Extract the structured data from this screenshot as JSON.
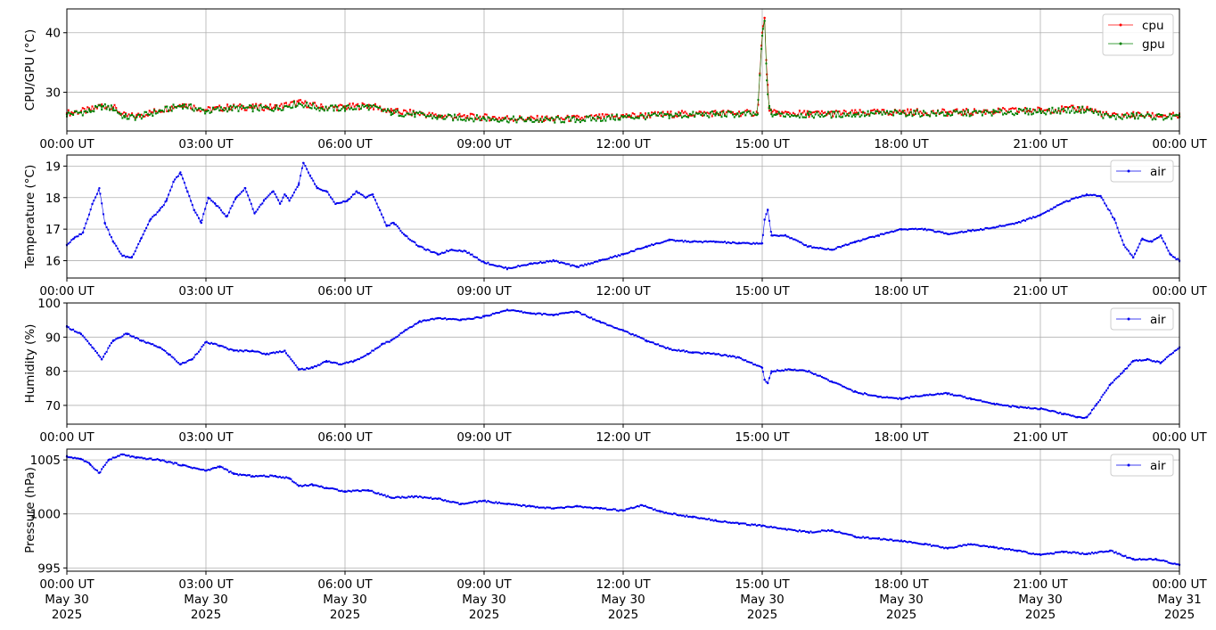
{
  "chart_data": [
    {
      "type": "line",
      "ylabel": "CPU/GPU (°C)",
      "xlim": [
        "00:00",
        "24:00"
      ],
      "ylim": [
        23.5,
        44
      ],
      "yticks": [
        30,
        40
      ],
      "xtick_labels": [
        "00:00 UT",
        "03:00 UT",
        "06:00 UT",
        "09:00 UT",
        "12:00 UT",
        "15:00 UT",
        "18:00 UT",
        "21:00 UT",
        "00:00 UT"
      ],
      "grid": true,
      "legend_position": "top-right",
      "series": [
        {
          "name": "cpu",
          "color": "#ff0000",
          "x_hours": [
            0,
            0.5,
            0.75,
            1.0,
            1.25,
            1.5,
            2.0,
            2.5,
            3.0,
            3.5,
            4.0,
            4.5,
            5.0,
            5.5,
            6.0,
            6.5,
            7.0,
            7.5,
            8.0,
            9.0,
            10.0,
            11.0,
            12.0,
            13.0,
            14.0,
            14.9,
            15.0,
            15.05,
            15.1,
            15.15,
            15.2,
            15.3,
            16.0,
            17.0,
            18.0,
            19.0,
            20.0,
            21.0,
            22.0,
            22.5,
            23.0,
            24.0
          ],
          "y": [
            26.5,
            27.0,
            27.8,
            27.5,
            26.0,
            26.0,
            27.0,
            28.0,
            27.0,
            27.5,
            27.5,
            27.5,
            28.3,
            27.5,
            27.5,
            27.8,
            26.8,
            26.5,
            26.0,
            25.8,
            25.5,
            25.6,
            26.0,
            26.3,
            26.5,
            26.5,
            40.0,
            42.5,
            33.0,
            27.5,
            26.5,
            26.5,
            26.4,
            26.5,
            26.7,
            26.6,
            26.8,
            27.0,
            27.3,
            26.0,
            26.2,
            26.0
          ]
        },
        {
          "name": "gpu",
          "color": "#008000",
          "x_hours": [
            0,
            0.5,
            0.75,
            1.0,
            1.25,
            1.5,
            2.0,
            2.5,
            3.0,
            3.5,
            4.0,
            4.5,
            5.0,
            5.5,
            6.0,
            6.5,
            7.0,
            7.5,
            8.0,
            9.0,
            10.0,
            11.0,
            12.0,
            13.0,
            14.0,
            14.9,
            15.0,
            15.05,
            15.1,
            15.15,
            15.2,
            15.3,
            16.0,
            17.0,
            18.0,
            19.0,
            20.0,
            21.0,
            22.0,
            22.5,
            23.0,
            24.0
          ],
          "y": [
            26.3,
            26.8,
            27.6,
            27.3,
            25.8,
            25.8,
            26.8,
            27.8,
            26.8,
            27.3,
            27.3,
            27.3,
            28.1,
            27.3,
            27.3,
            27.6,
            26.6,
            26.3,
            25.8,
            25.6,
            25.3,
            25.4,
            25.8,
            26.1,
            26.3,
            26.3,
            39.5,
            42.0,
            32.0,
            27.3,
            26.3,
            26.3,
            26.2,
            26.3,
            26.5,
            26.4,
            26.6,
            26.8,
            27.1,
            25.8,
            26.0,
            25.8
          ]
        }
      ]
    },
    {
      "type": "line",
      "ylabel": "Temperature (°C)",
      "xlim": [
        "00:00",
        "24:00"
      ],
      "ylim": [
        15.45,
        19.35
      ],
      "yticks": [
        16,
        17,
        18,
        19
      ],
      "xtick_labels": [
        "00:00 UT",
        "03:00 UT",
        "06:00 UT",
        "09:00 UT",
        "12:00 UT",
        "15:00 UT",
        "18:00 UT",
        "21:00 UT",
        "00:00 UT"
      ],
      "grid": true,
      "legend_position": "top-right",
      "series": [
        {
          "name": "air",
          "color": "#0000ee",
          "x_hours": [
            0,
            0.15,
            0.35,
            0.55,
            0.7,
            0.82,
            1.0,
            1.2,
            1.4,
            1.6,
            1.8,
            2.0,
            2.15,
            2.3,
            2.45,
            2.6,
            2.75,
            2.9,
            3.05,
            3.2,
            3.45,
            3.65,
            3.85,
            4.05,
            4.25,
            4.45,
            4.6,
            4.7,
            4.8,
            5.0,
            5.1,
            5.25,
            5.4,
            5.6,
            5.8,
            6.05,
            6.25,
            6.45,
            6.6,
            6.75,
            6.9,
            7.05,
            7.3,
            7.6,
            8.0,
            8.3,
            8.6,
            9.0,
            9.5,
            10.0,
            10.5,
            11.0,
            11.5,
            12.0,
            12.5,
            13.0,
            13.5,
            14.0,
            14.5,
            15.0,
            15.05,
            15.12,
            15.2,
            15.5,
            16.0,
            16.5,
            17.0,
            17.5,
            18.0,
            18.5,
            19.0,
            19.5,
            20.0,
            20.5,
            21.0,
            21.5,
            22.0,
            22.3,
            22.6,
            22.8,
            23.0,
            23.2,
            23.4,
            23.6,
            23.8,
            24.0
          ],
          "y": [
            16.5,
            16.7,
            16.9,
            17.8,
            18.3,
            17.2,
            16.6,
            16.15,
            16.1,
            16.7,
            17.3,
            17.6,
            17.9,
            18.5,
            18.8,
            18.2,
            17.6,
            17.2,
            18.0,
            17.8,
            17.4,
            18.0,
            18.3,
            17.5,
            17.9,
            18.2,
            17.8,
            18.1,
            17.9,
            18.4,
            19.1,
            18.7,
            18.3,
            18.2,
            17.8,
            17.9,
            18.2,
            18.0,
            18.1,
            17.6,
            17.1,
            17.2,
            16.8,
            16.45,
            16.2,
            16.35,
            16.3,
            15.95,
            15.75,
            15.9,
            16.0,
            15.8,
            16.0,
            16.2,
            16.45,
            16.65,
            16.6,
            16.6,
            16.55,
            16.55,
            17.3,
            17.6,
            16.8,
            16.8,
            16.45,
            16.35,
            16.6,
            16.8,
            17.0,
            17.0,
            16.85,
            16.95,
            17.05,
            17.2,
            17.45,
            17.85,
            18.1,
            18.05,
            17.3,
            16.5,
            16.1,
            16.7,
            16.6,
            16.8,
            16.2,
            16.0
          ]
        }
      ]
    },
    {
      "type": "line",
      "ylabel": "Humidity (%)",
      "xlim": [
        "00:00",
        "24:00"
      ],
      "ylim": [
        64.5,
        100
      ],
      "yticks": [
        70,
        80,
        90,
        100
      ],
      "xtick_labels": [
        "00:00 UT",
        "03:00 UT",
        "06:00 UT",
        "09:00 UT",
        "12:00 UT",
        "15:00 UT",
        "18:00 UT",
        "21:00 UT",
        "00:00 UT"
      ],
      "grid": true,
      "legend_position": "top-right",
      "series": [
        {
          "name": "air",
          "color": "#0000ee",
          "x_hours": [
            0,
            0.3,
            0.55,
            0.75,
            1.0,
            1.3,
            1.6,
            2.0,
            2.2,
            2.45,
            2.7,
            3.0,
            3.3,
            3.6,
            4.0,
            4.3,
            4.7,
            5.0,
            5.3,
            5.6,
            5.9,
            6.2,
            6.5,
            6.8,
            7.0,
            7.3,
            7.6,
            8.0,
            8.5,
            9.0,
            9.5,
            10.0,
            10.5,
            11.0,
            11.5,
            12.0,
            12.5,
            13.0,
            13.5,
            14.0,
            14.5,
            15.0,
            15.05,
            15.12,
            15.2,
            15.6,
            16.0,
            16.5,
            17.0,
            17.5,
            18.0,
            18.5,
            19.0,
            19.5,
            20.0,
            20.5,
            21.0,
            21.5,
            21.8,
            22.0,
            22.2,
            22.5,
            22.8,
            23.0,
            23.3,
            23.6,
            24.0
          ],
          "y": [
            93,
            91,
            87,
            83.5,
            89,
            91,
            89,
            87,
            85,
            82,
            83.5,
            88.5,
            87.5,
            86,
            86,
            85,
            86,
            80.5,
            81,
            83,
            82,
            83,
            85,
            88,
            89,
            92,
            94.5,
            95.5,
            95,
            96,
            98,
            97,
            96.5,
            97.5,
            94.5,
            92,
            89,
            86.5,
            85.5,
            85,
            84,
            81,
            77.5,
            76.5,
            80,
            80.5,
            80,
            77,
            74,
            72.5,
            72,
            73,
            73.5,
            72,
            70.5,
            69.5,
            69,
            67.5,
            66.5,
            66.5,
            70,
            76,
            80,
            83,
            83.5,
            82.5,
            87
          ]
        }
      ]
    },
    {
      "type": "line",
      "ylabel": "Pressure (hPa)",
      "xlim": [
        "00:00",
        "24:00"
      ],
      "ylim": [
        994.7,
        1006
      ],
      "yticks": [
        995,
        1000,
        1005
      ],
      "xtick_labels": [
        "00:00 UT\nMay 30\n2025",
        "03:00 UT\nMay 30\n2025",
        "06:00 UT\nMay 30\n2025",
        "09:00 UT\nMay 30\n2025",
        "12:00 UT\nMay 30\n2025",
        "15:00 UT\nMay 30\n2025",
        "18:00 UT\nMay 30\n2025",
        "21:00 UT\nMay 30\n2025",
        "00:00 UT\nMay 31\n2025"
      ],
      "grid": true,
      "legend_position": "top-right",
      "series": [
        {
          "name": "air",
          "color": "#0000ee",
          "x_hours": [
            0,
            0.3,
            0.5,
            0.7,
            0.9,
            1.2,
            1.5,
            2.0,
            2.5,
            3.0,
            3.3,
            3.6,
            4.0,
            4.5,
            4.8,
            5.0,
            5.3,
            5.6,
            6.0,
            6.5,
            7.0,
            7.5,
            8.0,
            8.5,
            9.0,
            9.5,
            10.0,
            10.5,
            11.0,
            11.5,
            12.0,
            12.4,
            12.8,
            13.5,
            14.0,
            14.5,
            15.0,
            15.5,
            16.0,
            16.5,
            17.0,
            17.5,
            18.0,
            18.5,
            19.0,
            19.5,
            20.0,
            20.5,
            21.0,
            21.5,
            22.0,
            22.5,
            23.0,
            23.5,
            24.0
          ],
          "y": [
            1005.3,
            1005.1,
            1004.6,
            1003.8,
            1005.0,
            1005.5,
            1005.2,
            1005.0,
            1004.5,
            1004.0,
            1004.4,
            1003.7,
            1003.5,
            1003.5,
            1003.3,
            1002.6,
            1002.7,
            1002.4,
            1002.1,
            1002.2,
            1001.5,
            1001.6,
            1001.4,
            1000.9,
            1001.2,
            1000.9,
            1000.7,
            1000.5,
            1000.7,
            1000.5,
            1000.3,
            1000.8,
            1000.2,
            999.7,
            999.4,
            999.1,
            998.9,
            998.6,
            998.3,
            998.5,
            997.9,
            997.7,
            997.5,
            997.2,
            996.8,
            997.2,
            996.9,
            996.6,
            996.2,
            996.5,
            996.3,
            996.6,
            995.8,
            995.8,
            995.3
          ]
        }
      ]
    }
  ]
}
